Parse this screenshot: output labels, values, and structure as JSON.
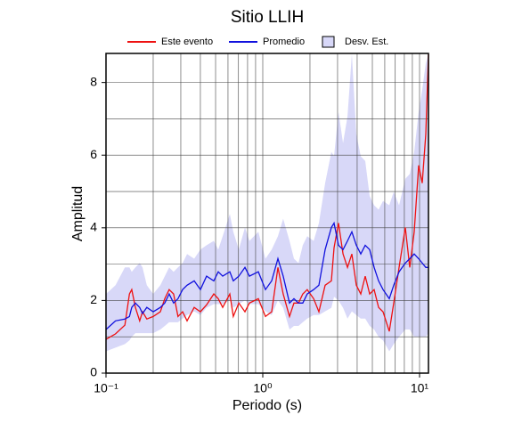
{
  "chart_data": {
    "type": "line",
    "title": "Sitio LLIH",
    "x_label": "Periodo (s)",
    "y_label": "Amplitud",
    "x_scale": "log",
    "grid": true,
    "legend": "top",
    "xlim": [
      0.1,
      11.4
    ],
    "ylim": [
      0,
      8.8
    ],
    "xticks": [
      {
        "value": 0.1,
        "label": "10⁻¹"
      },
      {
        "value": 1,
        "label": "10⁰"
      },
      {
        "value": 10,
        "label": "10¹"
      }
    ],
    "xminorticks": [
      0.2,
      0.3,
      0.4,
      0.5,
      0.6,
      0.7,
      0.8,
      0.9,
      2,
      3,
      4,
      5,
      6,
      7,
      8,
      9
    ],
    "yticks": [
      0,
      2,
      4,
      6,
      8
    ],
    "yminorticks": [
      1,
      3,
      5,
      7
    ],
    "x": [
      0.1,
      0.115,
      0.132,
      0.141,
      0.146,
      0.154,
      0.164,
      0.171,
      0.182,
      0.2,
      0.222,
      0.237,
      0.253,
      0.27,
      0.288,
      0.308,
      0.329,
      0.365,
      0.4,
      0.438,
      0.487,
      0.52,
      0.555,
      0.616,
      0.649,
      0.703,
      0.77,
      0.822,
      0.937,
      1.04,
      1.14,
      1.25,
      1.35,
      1.48,
      1.58,
      1.69,
      1.8,
      1.92,
      2.11,
      2.28,
      2.5,
      2.74,
      2.85,
      3.04,
      3.25,
      3.47,
      3.7,
      3.95,
      4.22,
      4.5,
      4.81,
      5.13,
      5.48,
      5.85,
      6.41,
      6.84,
      7.4,
      8.11,
      8.66,
      9.25,
      9.87,
      10.4,
      10.96,
      11.4
    ],
    "band": {
      "name": "Desv. Est.",
      "color": "#d8d8f8",
      "upper": [
        2.18,
        2.42,
        2.91,
        2.91,
        2.79,
        2.91,
        3.03,
        2.91,
        2.42,
        2.18,
        2.42,
        2.67,
        2.91,
        2.79,
        2.91,
        3.03,
        3.28,
        3.15,
        3.4,
        3.52,
        3.64,
        3.4,
        3.77,
        4.38,
        3.89,
        3.4,
        4.01,
        3.64,
        3.89,
        3.15,
        3.4,
        3.77,
        4.25,
        3.64,
        3.15,
        3.03,
        3.52,
        3.77,
        3.64,
        4.13,
        5.23,
        6.09,
        5.97,
        7.19,
        6.33,
        7.07,
        8.78,
        6.58,
        5.97,
        5.84,
        4.87,
        4.62,
        4.5,
        4.74,
        4.62,
        4.99,
        4.62,
        5.35,
        5.48,
        6.09,
        7.19,
        7.8,
        8.53,
        8.78
      ],
      "lower": [
        0.6,
        0.7,
        0.8,
        0.9,
        1.0,
        1.1,
        1.1,
        1.1,
        1.1,
        1.1,
        1.2,
        1.3,
        1.4,
        1.4,
        1.4,
        1.5,
        1.6,
        1.7,
        1.6,
        1.8,
        1.9,
        1.9,
        1.9,
        2.0,
        1.8,
        1.9,
        2.0,
        1.9,
        1.9,
        1.7,
        1.6,
        2.0,
        1.8,
        1.2,
        1.3,
        1.3,
        1.4,
        1.5,
        1.6,
        1.6,
        1.7,
        1.8,
        2.1,
        2.0,
        1.8,
        1.5,
        1.7,
        1.6,
        1.5,
        1.5,
        1.3,
        1.2,
        1.0,
        0.9,
        0.6,
        0.8,
        1.0,
        1.2,
        1.2,
        1.0,
        1.0,
        1.0,
        1.0,
        1.1
      ]
    },
    "series": [
      {
        "name": "Este evento",
        "color": "#ee1111",
        "values": [
          0.93,
          1.08,
          1.32,
          2.18,
          2.3,
          1.81,
          1.44,
          1.69,
          1.49,
          1.56,
          1.69,
          2.05,
          2.3,
          2.18,
          1.56,
          1.69,
          1.44,
          1.81,
          1.69,
          1.88,
          2.18,
          2.05,
          1.81,
          2.18,
          1.56,
          1.93,
          1.69,
          1.93,
          2.05,
          1.56,
          1.69,
          2.91,
          2.18,
          1.56,
          1.93,
          1.93,
          2.18,
          2.3,
          2.05,
          1.69,
          2.42,
          2.54,
          3.45,
          4.13,
          3.28,
          2.91,
          3.28,
          2.42,
          2.18,
          2.67,
          2.18,
          2.3,
          1.81,
          1.69,
          1.15,
          1.93,
          2.91,
          4.01,
          2.91,
          3.89,
          5.72,
          5.23,
          6.58,
          8.78
        ]
      },
      {
        "name": "Promedio",
        "color": "#1111dd",
        "values": [
          1.2,
          1.44,
          1.49,
          1.56,
          1.81,
          1.93,
          1.81,
          1.64,
          1.81,
          1.69,
          1.81,
          1.93,
          2.18,
          1.93,
          2.05,
          2.3,
          2.42,
          2.54,
          2.3,
          2.67,
          2.54,
          2.79,
          2.67,
          2.79,
          2.54,
          2.67,
          2.91,
          2.67,
          2.79,
          2.3,
          2.54,
          3.15,
          2.67,
          1.93,
          2.05,
          1.93,
          1.93,
          2.18,
          2.3,
          2.42,
          3.4,
          4.01,
          4.13,
          3.52,
          3.4,
          3.64,
          3.89,
          3.52,
          3.28,
          3.52,
          3.4,
          2.91,
          2.54,
          2.3,
          2.05,
          2.42,
          2.79,
          3.03,
          3.15,
          3.28,
          3.15,
          3.03,
          2.91,
          2.91
        ]
      }
    ]
  }
}
